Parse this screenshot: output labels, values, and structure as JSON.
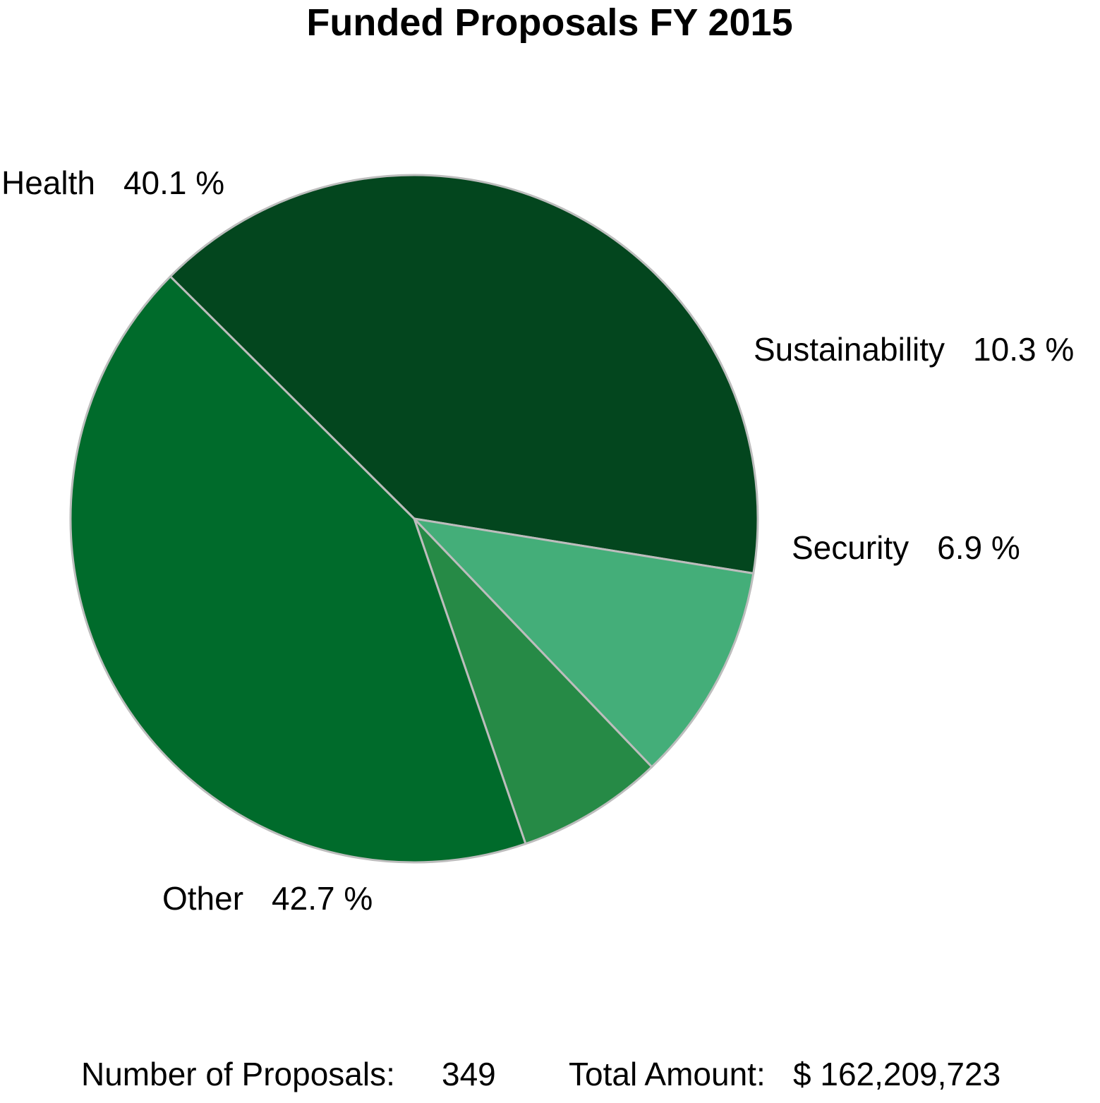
{
  "chart_data": {
    "type": "pie",
    "title": "Funded Proposals FY 2015",
    "slices": [
      {
        "label": "Health",
        "value": 40.1,
        "value_label": "40.1 %",
        "color": "#03461e"
      },
      {
        "label": "Sustainability",
        "value": 10.3,
        "value_label": "10.3 %",
        "color": "#44ae79"
      },
      {
        "label": "Security",
        "value": 6.9,
        "value_label": "6.9 %",
        "color": "#268a46"
      },
      {
        "label": "Other",
        "value": 42.7,
        "value_label": "42.7 %",
        "color": "#006b2b"
      }
    ],
    "slice_border_color": "#bdbdbd",
    "legend": "none"
  },
  "footer": {
    "proposals_label": "Number of Proposals:",
    "proposals_value": "349",
    "amount_label": "Total Amount:",
    "amount_value": "$ 162,209,723"
  }
}
